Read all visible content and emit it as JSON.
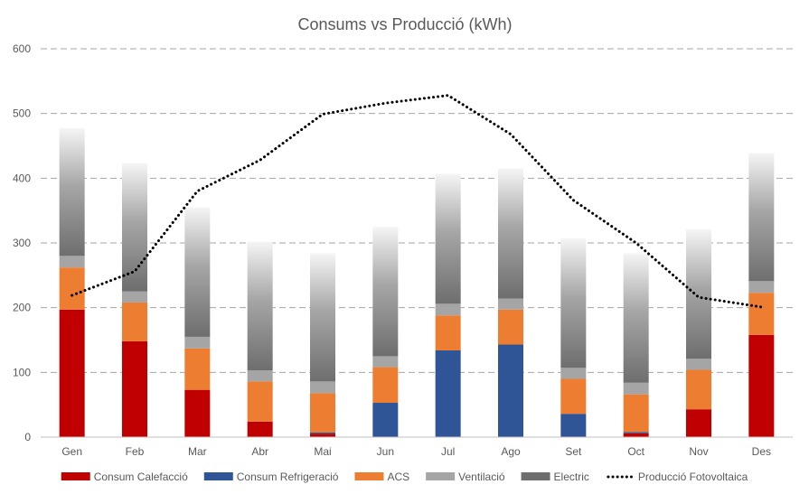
{
  "chart_data": {
    "type": "bar",
    "stacked": true,
    "title": "Consums vs Producció (kWh)",
    "xlabel": "",
    "ylabel": "",
    "ylim": [
      0,
      600
    ],
    "yticks": [
      0,
      100,
      200,
      300,
      400,
      500,
      600
    ],
    "grid": true,
    "legend_position": "bottom",
    "categories": [
      "Gen",
      "Feb",
      "Mar",
      "Abr",
      "Mai",
      "Jun",
      "Jul",
      "Ago",
      "Set",
      "Oct",
      "Nov",
      "Des"
    ],
    "series": [
      {
        "name": "Consum Calefacció",
        "kind": "bar",
        "color": "#C00000",
        "values": [
          197,
          148,
          73,
          24,
          5,
          0,
          0,
          0,
          0,
          6,
          43,
          158
        ]
      },
      {
        "name": "Consum Refrigeració",
        "kind": "bar",
        "color": "#2F5597",
        "values": [
          0,
          0,
          0,
          0,
          2,
          53,
          134,
          143,
          36,
          2,
          0,
          0
        ]
      },
      {
        "name": "ACS",
        "kind": "bar",
        "color": "#ED7D31",
        "values": [
          65,
          60,
          64,
          62,
          61,
          55,
          54,
          54,
          54,
          58,
          61,
          65
        ]
      },
      {
        "name": "Ventilació",
        "kind": "bar",
        "color": "#A5A5A5",
        "values": [
          18,
          17,
          18,
          17,
          18,
          17,
          18,
          17,
          17,
          18,
          17,
          18
        ]
      },
      {
        "name": "Electric",
        "kind": "bar",
        "color": "#6E6E6E",
        "gradient": true,
        "values": [
          197,
          198,
          200,
          199,
          198,
          200,
          201,
          201,
          200,
          200,
          200,
          198
        ]
      },
      {
        "name": "Producció Fotovoltaica",
        "kind": "line",
        "color": "#000000",
        "dashed": true,
        "values": [
          219,
          256,
          380,
          428,
          499,
          516,
          528,
          468,
          366,
          300,
          216,
          201
        ]
      }
    ]
  }
}
